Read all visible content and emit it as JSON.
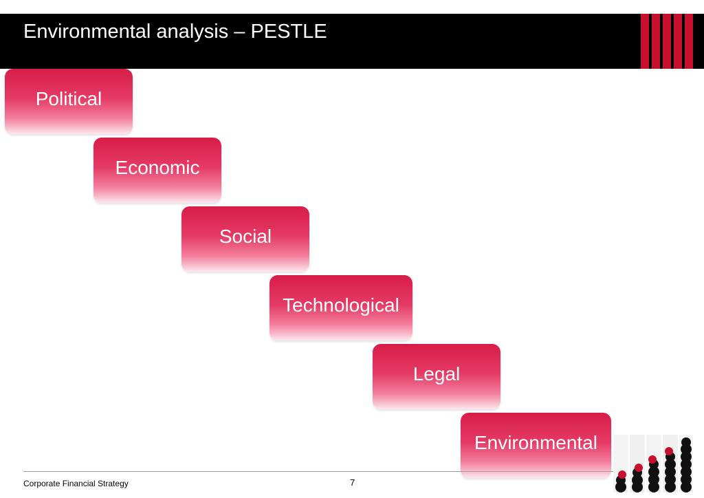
{
  "header": {
    "title": "Environmental analysis – PESTLE"
  },
  "pestle": {
    "items": [
      {
        "label": "Political"
      },
      {
        "label": "Economic"
      },
      {
        "label": "Social"
      },
      {
        "label": "Technological"
      },
      {
        "label": "Legal"
      },
      {
        "label": "Environmental"
      }
    ]
  },
  "footer": {
    "text": "Corporate Financial Strategy",
    "page": "7"
  },
  "colors": {
    "accent": "#c8102e",
    "box_top": "#d81c48",
    "box_bottom": "#fde6ee",
    "header_bg": "#000000"
  }
}
